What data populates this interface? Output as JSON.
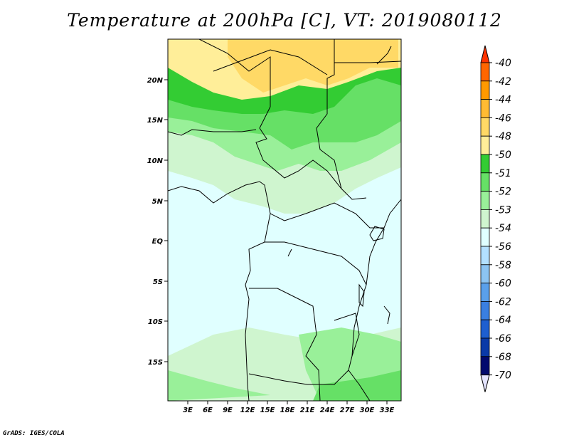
{
  "title": "Temperature at 200hPa [C], VT: 2019080112",
  "credit": "GrADS: IGES/COLA",
  "map": {
    "lat_ticks": [
      "20N",
      "15N",
      "10N",
      "5N",
      "EQ",
      "5S",
      "10S",
      "15S"
    ],
    "lon_ticks": [
      "3E",
      "6E",
      "9E",
      "12E",
      "15E",
      "18E",
      "21E",
      "24E",
      "27E",
      "30E",
      "33E"
    ]
  },
  "legend": {
    "levels": [
      "-40",
      "-42",
      "-44",
      "-46",
      "-48",
      "-50",
      "-51",
      "-52",
      "-53",
      "-54",
      "-56",
      "-58",
      "-60",
      "-62",
      "-64",
      "-66",
      "-68",
      "-70"
    ],
    "colors": [
      "#ff3300",
      "#ff6600",
      "#ff9900",
      "#ffbb33",
      "#ffd966",
      "#ffee99",
      "#33cc33",
      "#66e066",
      "#99f099",
      "#cff5cf",
      "#e0ffff",
      "#b3e0ff",
      "#8cc4f2",
      "#5aa0ea",
      "#3a7fe0",
      "#1e5fd0",
      "#0a3aa8",
      "#020a6e",
      "#e4e4ff"
    ]
  },
  "colors": {
    "land_outline": "#000000",
    "ocean": "#e0ffff"
  }
}
